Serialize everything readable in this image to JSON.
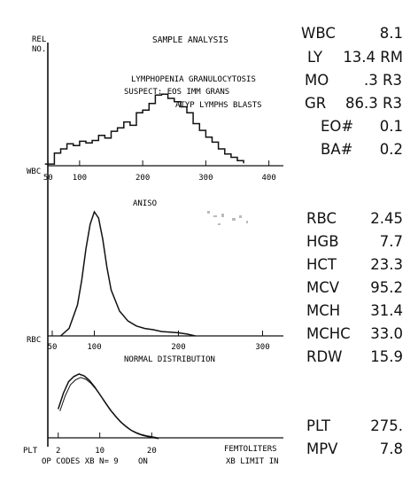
{
  "header": {
    "rel_label": [
      "REL",
      "NO."
    ],
    "title": "SAMPLE ANALYSIS"
  },
  "flags": [
    "LYMPHOPENIA GRANULOCYTOSIS",
    "SUSPECT: EOS IMM GRANS",
    "ATYP LYMPHS BLASTS"
  ],
  "footer": {
    "op_codes": "OP CODES XB N= 9",
    "on": "ON",
    "femtoliters": "FEMTOLITERS",
    "xb_limit": "XB LIMIT IN"
  },
  "chart_data": [
    {
      "type": "line",
      "name": "WBC",
      "axis_label": "WBC",
      "xlim": [
        30,
        430
      ],
      "xticks": [
        50,
        100,
        200,
        300,
        400
      ],
      "xtick_labels": [
        "50",
        "100",
        "200",
        "300",
        "400"
      ],
      "x": [
        45,
        60,
        70,
        80,
        90,
        100,
        110,
        120,
        130,
        140,
        150,
        160,
        170,
        180,
        190,
        200,
        210,
        220,
        230,
        240,
        250,
        260,
        270,
        280,
        290,
        300,
        310,
        320,
        330,
        340,
        350,
        360
      ],
      "y": [
        0.02,
        0.15,
        0.2,
        0.26,
        0.24,
        0.29,
        0.27,
        0.3,
        0.36,
        0.33,
        0.41,
        0.45,
        0.52,
        0.48,
        0.63,
        0.66,
        0.74,
        0.84,
        0.85,
        0.8,
        0.76,
        0.7,
        0.63,
        0.5,
        0.42,
        0.34,
        0.28,
        0.2,
        0.14,
        0.1,
        0.06,
        0.03
      ]
    },
    {
      "type": "line",
      "name": "RBC",
      "axis_label": "RBC",
      "annotation": "ANISO",
      "xlim": [
        30,
        330
      ],
      "xticks": [
        50,
        100,
        200,
        300
      ],
      "xtick_labels": [
        "50",
        "100",
        "200",
        "300"
      ],
      "x": [
        60,
        70,
        80,
        85,
        90,
        95,
        100,
        105,
        110,
        115,
        120,
        130,
        140,
        150,
        160,
        170,
        180,
        190,
        200,
        210,
        220
      ],
      "y": [
        0.0,
        0.06,
        0.25,
        0.45,
        0.7,
        0.9,
        1.0,
        0.95,
        0.78,
        0.55,
        0.37,
        0.2,
        0.12,
        0.08,
        0.06,
        0.05,
        0.035,
        0.03,
        0.025,
        0.015,
        0.0
      ]
    },
    {
      "type": "line",
      "name": "PLT",
      "axis_label": "PLT",
      "annotation": "NORMAL DISTRIBUTION",
      "xlim": [
        0,
        30
      ],
      "xticks": [
        2,
        10,
        20
      ],
      "xtick_labels": [
        "2",
        "10",
        "20"
      ],
      "x": [
        2,
        3,
        4,
        5,
        6,
        7,
        8,
        9,
        10,
        11,
        12,
        13,
        14,
        15,
        16,
        17,
        18,
        19,
        20,
        21
      ],
      "y": [
        0.45,
        0.7,
        0.88,
        0.96,
        1.0,
        0.97,
        0.9,
        0.8,
        0.68,
        0.56,
        0.44,
        0.34,
        0.25,
        0.18,
        0.12,
        0.08,
        0.05,
        0.03,
        0.015,
        0.0
      ]
    }
  ],
  "results": [
    {
      "label": "WBC",
      "value": "8.1"
    },
    {
      "label": "LY",
      "value": "13.4 RM"
    },
    {
      "label": "MO",
      "value": ".3 R3"
    },
    {
      "label": "GR",
      "value": "86.3 R3"
    },
    {
      "label": "EO#",
      "value": "0.1"
    },
    {
      "label": "BA#",
      "value": "0.2"
    },
    {
      "label": "RBC",
      "value": "2.45"
    },
    {
      "label": "HGB",
      "value": "7.7"
    },
    {
      "label": "HCT",
      "value": "23.3"
    },
    {
      "label": "MCV",
      "value": "95.2"
    },
    {
      "label": "MCH",
      "value": "31.4"
    },
    {
      "label": "MCHC",
      "value": "33.0"
    },
    {
      "label": "RDW",
      "value": "15.9"
    },
    {
      "label": "PLT",
      "value": "275."
    },
    {
      "label": "MPV",
      "value": "7.8"
    }
  ]
}
